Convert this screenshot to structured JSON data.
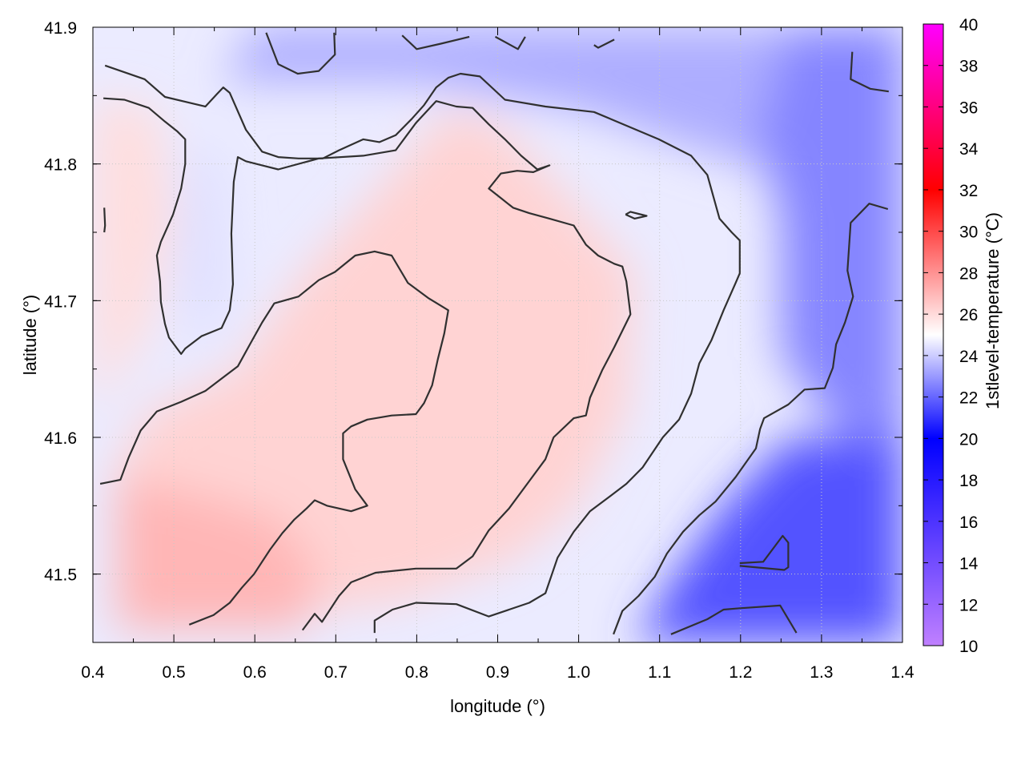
{
  "chart_data": {
    "type": "heatmap",
    "title": "",
    "xlabel": "longitude (°)",
    "ylabel": "latitude (°)",
    "colorbar_label": "1stlevel-temperature (°C)",
    "xlim": [
      0.4,
      1.4
    ],
    "ylim": [
      41.45,
      41.9
    ],
    "x_ticks": [
      "0.4",
      "0.5",
      "0.6",
      "0.7",
      "0.8",
      "0.9",
      "1.0",
      "1.1",
      "1.2",
      "1.3",
      "1.4"
    ],
    "y_ticks": [
      "41.5",
      "41.6",
      "41.7",
      "41.8",
      "41.9"
    ],
    "colorbar_range": [
      10,
      40
    ],
    "colorbar_ticks": [
      "10",
      "12",
      "14",
      "16",
      "18",
      "20",
      "22",
      "24",
      "26",
      "28",
      "30",
      "32",
      "34",
      "36",
      "38",
      "40"
    ],
    "colormap": [
      {
        "value": 10,
        "color": "#c080ff"
      },
      {
        "value": 20,
        "color": "#0000ff"
      },
      {
        "value": 25,
        "color": "#ffffff"
      },
      {
        "value": 32,
        "color": "#ff0000"
      },
      {
        "value": 40,
        "color": "#ff00ff"
      }
    ],
    "temperature_regions": [
      {
        "region": "southwest (lon 0.45-0.65, lat 41.45-41.55)",
        "approx_value": 27
      },
      {
        "region": "center (lon 0.6-0.95, lat 41.55-41.8)",
        "approx_value": 26
      },
      {
        "region": "northwest edge (lon 0.5-0.6, lat 41.7-41.85)",
        "approx_value": 24
      },
      {
        "region": "north strip (lon 0.6-1.4, lat 41.85-41.9)",
        "approx_value": 23
      },
      {
        "region": "east (lon 1.25-1.4, lat 41.6-41.8)",
        "approx_value": 22.5
      },
      {
        "region": "southeast (lon 1.1-1.4, lat 41.45-41.52)",
        "approx_value": 21.5
      }
    ],
    "contours": [
      [
        [
          0.415,
          41.872
        ],
        [
          0.464,
          41.862
        ],
        [
          0.489,
          41.849
        ],
        [
          0.539,
          41.842
        ],
        [
          0.553,
          41.851
        ],
        [
          0.561,
          41.856
        ],
        [
          0.569,
          41.852
        ],
        [
          0.589,
          41.825
        ],
        [
          0.609,
          41.809
        ],
        [
          0.629,
          41.805
        ],
        [
          0.654,
          41.804
        ],
        [
          0.684,
          41.804
        ],
        [
          0.704,
          41.81
        ],
        [
          0.734,
          41.818
        ],
        [
          0.754,
          41.816
        ],
        [
          0.774,
          41.821
        ],
        [
          0.794,
          41.833
        ],
        [
          0.809,
          41.843
        ],
        [
          0.824,
          41.856
        ],
        [
          0.839,
          41.863
        ],
        [
          0.854,
          41.866
        ],
        [
          0.878,
          41.864
        ],
        [
          0.909,
          41.847
        ],
        [
          0.959,
          41.842
        ],
        [
          1.019,
          41.838
        ],
        [
          1.099,
          41.818
        ],
        [
          1.139,
          41.806
        ],
        [
          1.159,
          41.792
        ],
        [
          1.174,
          41.76
        ],
        [
          1.189,
          41.75
        ],
        [
          1.199,
          41.744
        ],
        [
          1.199,
          41.72
        ],
        [
          1.194,
          41.713
        ],
        [
          1.179,
          41.693
        ],
        [
          1.164,
          41.671
        ],
        [
          1.149,
          41.654
        ],
        [
          1.139,
          41.632
        ],
        [
          1.124,
          41.613
        ],
        [
          1.104,
          41.6
        ],
        [
          1.079,
          41.578
        ],
        [
          1.059,
          41.566
        ],
        [
          1.039,
          41.557
        ],
        [
          1.014,
          41.546
        ],
        [
          0.994,
          41.531
        ],
        [
          0.974,
          41.512
        ],
        [
          0.959,
          41.486
        ],
        [
          0.939,
          41.479
        ],
        [
          0.889,
          41.469
        ],
        [
          0.849,
          41.478
        ],
        [
          0.799,
          41.479
        ],
        [
          0.77,
          41.474
        ],
        [
          0.748,
          41.466
        ],
        [
          0.748,
          41.457
        ]
      ],
      [
        [
          0.413,
          41.848
        ],
        [
          0.439,
          41.847
        ],
        [
          0.469,
          41.841
        ],
        [
          0.489,
          41.831
        ],
        [
          0.504,
          41.824
        ],
        [
          0.514,
          41.818
        ],
        [
          0.514,
          41.8
        ],
        [
          0.509,
          41.782
        ],
        [
          0.499,
          41.763
        ],
        [
          0.484,
          41.743
        ],
        [
          0.479,
          41.733
        ],
        [
          0.483,
          41.714
        ],
        [
          0.484,
          41.699
        ],
        [
          0.489,
          41.683
        ],
        [
          0.494,
          41.673
        ],
        [
          0.509,
          41.661
        ],
        [
          0.514,
          41.665
        ],
        [
          0.534,
          41.674
        ],
        [
          0.559,
          41.68
        ],
        [
          0.569,
          41.693
        ],
        [
          0.573,
          41.712
        ],
        [
          0.571,
          41.749
        ],
        [
          0.574,
          41.787
        ],
        [
          0.579,
          41.805
        ],
        [
          0.589,
          41.802
        ],
        [
          0.609,
          41.799
        ],
        [
          0.629,
          41.796
        ],
        [
          0.679,
          41.804
        ],
        [
          0.734,
          41.806
        ],
        [
          0.774,
          41.81
        ],
        [
          0.799,
          41.83
        ],
        [
          0.824,
          41.846
        ],
        [
          0.849,
          41.842
        ],
        [
          0.869,
          41.841
        ],
        [
          0.889,
          41.829
        ],
        [
          0.909,
          41.818
        ],
        [
          0.929,
          41.806
        ],
        [
          0.949,
          41.796
        ],
        [
          0.964,
          41.799
        ],
        [
          0.944,
          41.794
        ],
        [
          0.924,
          41.795
        ],
        [
          0.904,
          41.793
        ],
        [
          0.889,
          41.782
        ],
        [
          0.904,
          41.775
        ],
        [
          0.919,
          41.768
        ],
        [
          0.939,
          41.764
        ],
        [
          0.964,
          41.76
        ],
        [
          0.994,
          41.755
        ],
        [
          1.009,
          41.741
        ],
        [
          1.024,
          41.733
        ],
        [
          1.044,
          41.727
        ],
        [
          1.054,
          41.725
        ],
        [
          1.059,
          41.714
        ],
        [
          1.064,
          41.69
        ],
        [
          1.054,
          41.678
        ],
        [
          1.044,
          41.666
        ],
        [
          1.029,
          41.649
        ],
        [
          1.014,
          41.629
        ],
        [
          1.009,
          41.616
        ],
        [
          0.994,
          41.614
        ],
        [
          0.969,
          41.6
        ],
        [
          0.959,
          41.584
        ],
        [
          0.939,
          41.568
        ],
        [
          0.914,
          41.548
        ],
        [
          0.889,
          41.532
        ],
        [
          0.869,
          41.513
        ],
        [
          0.849,
          41.504
        ],
        [
          0.799,
          41.504
        ],
        [
          0.749,
          41.501
        ],
        [
          0.719,
          41.494
        ],
        [
          0.704,
          41.484
        ],
        [
          0.683,
          41.465
        ],
        [
          0.674,
          41.471
        ],
        [
          0.659,
          41.459
        ]
      ],
      [
        [
          0.409,
          41.566
        ],
        [
          0.434,
          41.569
        ],
        [
          0.444,
          41.585
        ],
        [
          0.459,
          41.605
        ],
        [
          0.479,
          41.619
        ],
        [
          0.509,
          41.626
        ],
        [
          0.539,
          41.634
        ],
        [
          0.559,
          41.643
        ],
        [
          0.579,
          41.652
        ],
        [
          0.594,
          41.668
        ],
        [
          0.609,
          41.684
        ],
        [
          0.624,
          41.698
        ],
        [
          0.654,
          41.703
        ],
        [
          0.679,
          41.715
        ],
        [
          0.699,
          41.721
        ],
        [
          0.724,
          41.733
        ],
        [
          0.748,
          41.736
        ],
        [
          0.769,
          41.733
        ],
        [
          0.789,
          41.713
        ],
        [
          0.814,
          41.702
        ],
        [
          0.839,
          41.693
        ],
        [
          0.834,
          41.676
        ],
        [
          0.826,
          41.657
        ],
        [
          0.819,
          41.638
        ],
        [
          0.809,
          41.625
        ],
        [
          0.799,
          41.617
        ],
        [
          0.769,
          41.616
        ],
        [
          0.739,
          41.613
        ],
        [
          0.719,
          41.608
        ],
        [
          0.709,
          41.603
        ],
        [
          0.709,
          41.584
        ],
        [
          0.724,
          41.562
        ],
        [
          0.739,
          41.55
        ],
        [
          0.719,
          41.546
        ],
        [
          0.689,
          41.55
        ],
        [
          0.674,
          41.554
        ],
        [
          0.664,
          41.548
        ],
        [
          0.649,
          41.54
        ],
        [
          0.634,
          41.53
        ],
        [
          0.619,
          41.518
        ],
        [
          0.599,
          41.5
        ],
        [
          0.584,
          41.49
        ],
        [
          0.569,
          41.479
        ],
        [
          0.549,
          41.47
        ],
        [
          0.519,
          41.463
        ]
      ],
      [
        [
          0.414,
          41.75
        ],
        [
          0.415,
          41.755
        ],
        [
          0.414,
          41.768
        ]
      ],
      [
        [
          0.614,
          41.896
        ],
        [
          0.629,
          41.873
        ],
        [
          0.653,
          41.866
        ],
        [
          0.679,
          41.868
        ],
        [
          0.699,
          41.88
        ],
        [
          0.698,
          41.896
        ]
      ],
      [
        [
          0.782,
          41.894
        ],
        [
          0.8,
          41.884
        ],
        [
          0.83,
          41.888
        ],
        [
          0.865,
          41.893
        ]
      ],
      [
        [
          0.897,
          41.893
        ],
        [
          0.925,
          41.884
        ],
        [
          0.934,
          41.893
        ]
      ],
      [
        [
          1.019,
          41.887
        ],
        [
          1.024,
          41.885
        ],
        [
          1.044,
          41.891
        ]
      ],
      [
        [
          1.338,
          41.882
        ],
        [
          1.336,
          41.862
        ],
        [
          1.36,
          41.855
        ],
        [
          1.383,
          41.853
        ]
      ],
      [
        [
          1.058,
          41.763
        ],
        [
          1.064,
          41.765
        ],
        [
          1.084,
          41.762
        ],
        [
          1.069,
          41.76
        ],
        [
          1.058,
          41.763
        ]
      ],
      [
        [
          1.382,
          41.767
        ],
        [
          1.359,
          41.771
        ],
        [
          1.336,
          41.757
        ],
        [
          1.332,
          41.722
        ],
        [
          1.339,
          41.703
        ],
        [
          1.329,
          41.684
        ],
        [
          1.318,
          41.668
        ],
        [
          1.314,
          41.651
        ],
        [
          1.304,
          41.636
        ],
        [
          1.279,
          41.635
        ],
        [
          1.259,
          41.624
        ],
        [
          1.229,
          41.614
        ],
        [
          1.224,
          41.606
        ],
        [
          1.219,
          41.592
        ],
        [
          1.194,
          41.571
        ],
        [
          1.169,
          41.553
        ],
        [
          1.149,
          41.543
        ],
        [
          1.129,
          41.531
        ],
        [
          1.109,
          41.515
        ],
        [
          1.094,
          41.498
        ],
        [
          1.074,
          41.484
        ],
        [
          1.054,
          41.473
        ],
        [
          1.043,
          41.456
        ]
      ],
      [
        [
          1.199,
          41.508
        ],
        [
          1.228,
          41.509
        ],
        [
          1.252,
          41.528
        ],
        [
          1.259,
          41.523
        ],
        [
          1.259,
          41.505
        ],
        [
          1.254,
          41.503
        ],
        [
          1.199,
          41.506
        ]
      ],
      [
        [
          1.114,
          41.456
        ],
        [
          1.159,
          41.467
        ],
        [
          1.179,
          41.474
        ],
        [
          1.199,
          41.475
        ],
        [
          1.249,
          41.477
        ],
        [
          1.269,
          41.457
        ]
      ]
    ]
  }
}
